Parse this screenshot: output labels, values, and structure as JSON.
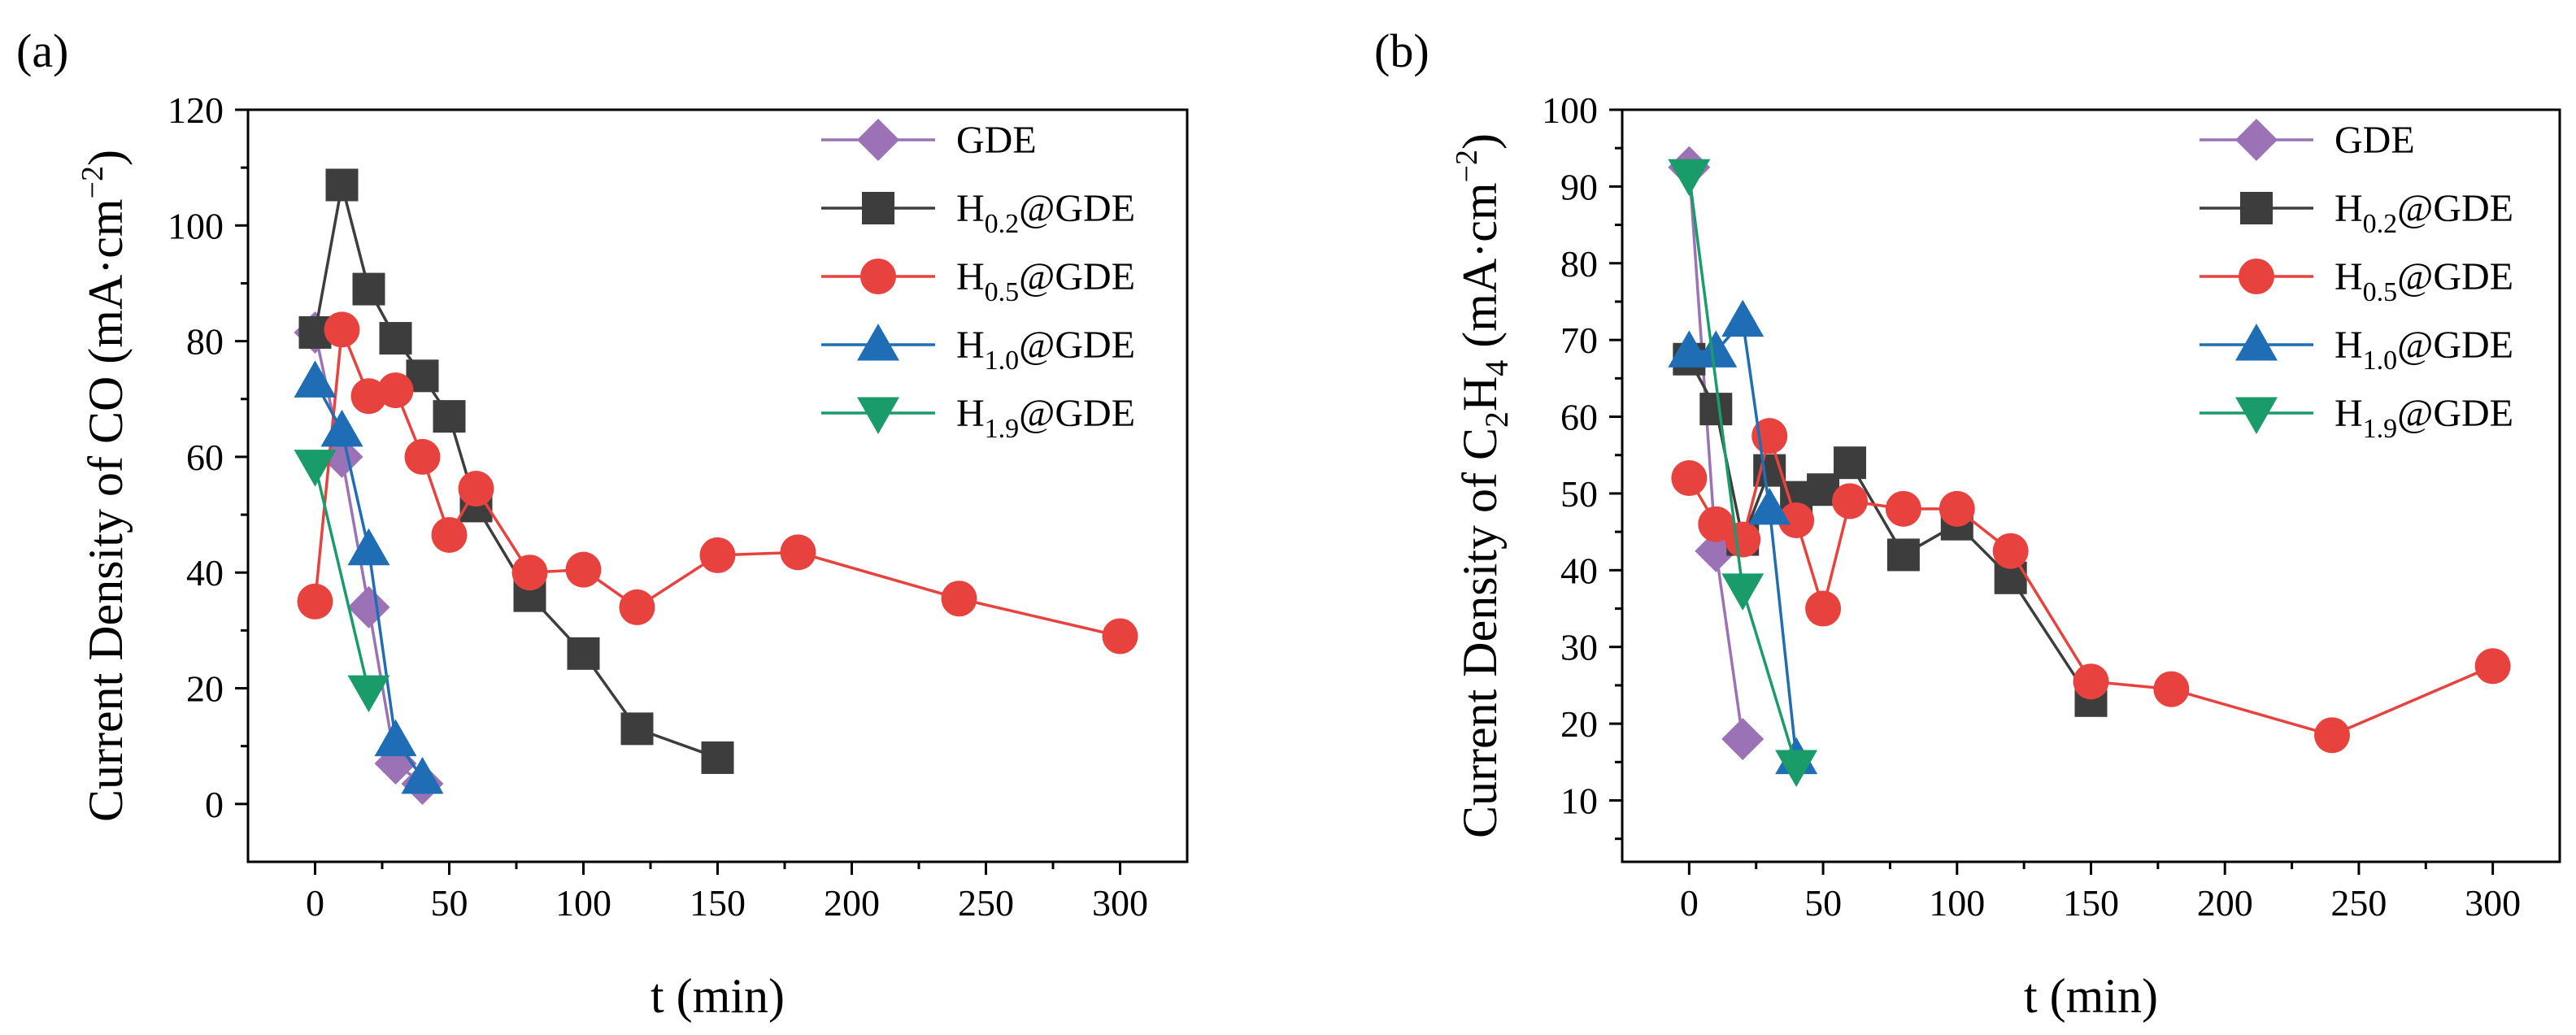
{
  "chart_data": [
    {
      "type": "line",
      "panel_label": "(a)",
      "title": "",
      "xlabel": "t (min)",
      "ylabel": "Current Density of CO (mA·cm⁻²)",
      "ylabel_parts": {
        "prefix": "Current Density of CO (mA·cm",
        "superscript": "−2",
        "suffix": ")"
      },
      "xlim": [
        -25,
        325
      ],
      "ylim": [
        -10,
        120
      ],
      "xticks": [
        0,
        50,
        100,
        150,
        200,
        250,
        300
      ],
      "yticks": [
        0,
        20,
        40,
        60,
        80,
        100,
        120
      ],
      "grid": false,
      "legend_position": "top-right",
      "series": [
        {
          "name": "GDE",
          "name_main": "GDE",
          "name_sub": "",
          "name_suffix": "",
          "color": "#9b72b5",
          "marker": "diamond",
          "x": [
            0,
            10,
            20,
            30,
            40
          ],
          "y": [
            81.5,
            60,
            34,
            7,
            3.5
          ]
        },
        {
          "name": "H0.2@GDE",
          "name_main": "H",
          "name_sub": "0.2",
          "name_suffix": "@GDE",
          "color": "#3d3d3d",
          "marker": "square",
          "x": [
            0,
            10,
            20,
            30,
            40,
            50,
            60,
            80,
            100,
            120,
            150
          ],
          "y": [
            81.5,
            107,
            89,
            80.5,
            74,
            67,
            51.5,
            36,
            26,
            13,
            8
          ]
        },
        {
          "name": "H0.5@GDE",
          "name_main": "H",
          "name_sub": "0.5",
          "name_suffix": "@GDE",
          "color": "#e8423f",
          "marker": "circle",
          "x": [
            0,
            10,
            20,
            30,
            40,
            50,
            60,
            80,
            100,
            120,
            150,
            180,
            240,
            300
          ],
          "y": [
            35,
            82,
            70.5,
            71.5,
            60,
            46.5,
            54.5,
            40,
            40.5,
            34,
            43,
            43.5,
            35.5,
            29
          ]
        },
        {
          "name": "H1.0@GDE",
          "name_main": "H",
          "name_sub": "1.0",
          "name_suffix": "@GDE",
          "color": "#1f6eb5",
          "marker": "triangle-up",
          "x": [
            0,
            10,
            20,
            30,
            40
          ],
          "y": [
            73,
            64.5,
            44,
            11,
            4.5
          ]
        },
        {
          "name": "H1.9@GDE",
          "name_main": "H",
          "name_sub": "1.9",
          "name_suffix": "@GDE",
          "color": "#1a9c6a",
          "marker": "triangle-down",
          "x": [
            0,
            20
          ],
          "y": [
            58.5,
            19.5
          ]
        }
      ]
    },
    {
      "type": "line",
      "panel_label": "(b)",
      "title": "",
      "xlabel": "t (min)",
      "ylabel": "Current Density of C₂H₄ (mA·cm⁻²)",
      "ylabel_parts": {
        "prefix": "Current Density of C",
        "sub1": "2",
        "mid": "H",
        "sub2": "4",
        "mid2": " (mA·cm",
        "superscript": "−2",
        "suffix": ")"
      },
      "xlim": [
        -25,
        325
      ],
      "ylim": [
        2,
        100
      ],
      "xticks": [
        0,
        50,
        100,
        150,
        200,
        250,
        300
      ],
      "yticks": [
        10,
        20,
        30,
        40,
        50,
        60,
        70,
        80,
        90,
        100
      ],
      "grid": false,
      "legend_position": "top-right",
      "series": [
        {
          "name": "GDE",
          "name_main": "GDE",
          "name_sub": "",
          "name_suffix": "",
          "color": "#9b72b5",
          "marker": "diamond",
          "x": [
            0,
            10,
            20
          ],
          "y": [
            92.5,
            42.5,
            18
          ]
        },
        {
          "name": "H0.2@GDE",
          "name_main": "H",
          "name_sub": "0.2",
          "name_suffix": "@GDE",
          "color": "#3d3d3d",
          "marker": "square",
          "x": [
            0,
            10,
            20,
            30,
            40,
            50,
            60,
            80,
            100,
            120,
            150
          ],
          "y": [
            67.5,
            61,
            44,
            53,
            49.5,
            50.5,
            54,
            42,
            46,
            39,
            23
          ]
        },
        {
          "name": "H0.5@GDE",
          "name_main": "H",
          "name_sub": "0.5",
          "name_suffix": "@GDE",
          "color": "#e8423f",
          "marker": "circle",
          "x": [
            0,
            10,
            20,
            30,
            40,
            50,
            60,
            80,
            100,
            120,
            150,
            180,
            240,
            300
          ],
          "y": [
            52,
            46,
            44,
            57.5,
            46.5,
            35,
            49,
            48,
            48,
            42.5,
            25.5,
            24.5,
            18.5,
            27.5
          ]
        },
        {
          "name": "H1.0@GDE",
          "name_main": "H",
          "name_sub": "1.0",
          "name_suffix": "@GDE",
          "color": "#1f6eb5",
          "marker": "triangle-up",
          "x": [
            0,
            10,
            20,
            30,
            40
          ],
          "y": [
            68.5,
            68.5,
            72.5,
            48,
            15.5
          ]
        },
        {
          "name": "H1.9@GDE",
          "name_main": "H",
          "name_sub": "1.9",
          "name_suffix": "@GDE",
          "color": "#1a9c6a",
          "marker": "triangle-down",
          "x": [
            0,
            20,
            40
          ],
          "y": [
            91.5,
            37.5,
            14.5
          ]
        }
      ]
    }
  ]
}
